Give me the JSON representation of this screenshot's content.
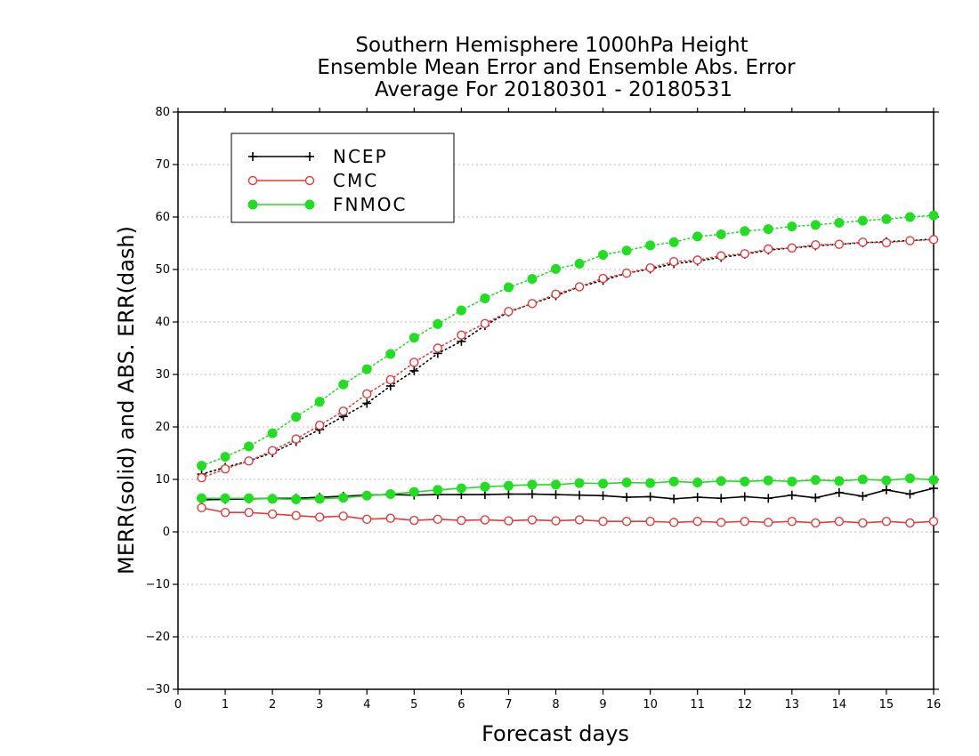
{
  "chart_data": {
    "type": "line",
    "title": [
      "Southern Hemisphere 1000hPa Height",
      "Ensemble Mean Error and Ensemble Abs. Error",
      "Average For 20180301 - 20180531"
    ],
    "xlabel": "Forecast days",
    "ylabel": "MERR(solid) and ABS. ERR(dash)",
    "xlim": [
      0,
      16
    ],
    "ylim": [
      -30,
      80
    ],
    "xticks": [
      "0",
      "1",
      "2",
      "3",
      "4",
      "5",
      "6",
      "7",
      "8",
      "9",
      "10",
      "11",
      "12",
      "13",
      "14",
      "15",
      "16"
    ],
    "yticks": [
      "−30",
      "−20",
      "−10",
      "0",
      "10",
      "20",
      "30",
      "40",
      "50",
      "60",
      "70",
      "80"
    ],
    "grid": "horizontal dotted",
    "legend_position": "top-left",
    "x": [
      0.5,
      1,
      1.5,
      2,
      2.5,
      3,
      3.5,
      4,
      4.5,
      5,
      5.5,
      6,
      6.5,
      7,
      7.5,
      8,
      8.5,
      9,
      9.5,
      10,
      10.5,
      11,
      11.5,
      12,
      12.5,
      13,
      13.5,
      14,
      14.5,
      15,
      15.5,
      16
    ],
    "series": [
      {
        "name": "NCEP",
        "color": "#000000",
        "marker": "plus",
        "mean_error": [
          6.1,
          6.2,
          6.3,
          6.4,
          6.4,
          6.6,
          6.8,
          7.0,
          7.1,
          7.0,
          7.1,
          7.1,
          7.1,
          7.2,
          7.2,
          7.1,
          7.0,
          6.9,
          6.6,
          6.7,
          6.3,
          6.6,
          6.4,
          6.7,
          6.4,
          7.0,
          6.5,
          7.5,
          6.8,
          8.0,
          7.2,
          8.3
        ],
        "abs_error": [
          11.0,
          12.3,
          13.5,
          15.1,
          17.2,
          19.5,
          22.0,
          24.5,
          27.8,
          30.7,
          34.0,
          36.3,
          39.3,
          41.9,
          43.5,
          45.0,
          46.7,
          47.9,
          49.3,
          50.1,
          51.1,
          51.6,
          52.3,
          52.9,
          53.7,
          54.1,
          54.5,
          54.8,
          55.1,
          55.3,
          55.5,
          55.8
        ]
      },
      {
        "name": "CMC",
        "color": "#e23c3c",
        "marker": "open-circle",
        "mean_error": [
          4.6,
          3.7,
          3.7,
          3.4,
          3.1,
          2.8,
          3.0,
          2.4,
          2.6,
          2.2,
          2.4,
          2.2,
          2.3,
          2.1,
          2.3,
          2.1,
          2.3,
          2.0,
          2.0,
          2.0,
          1.8,
          2.0,
          1.8,
          2.0,
          1.8,
          2.0,
          1.7,
          2.0,
          1.7,
          2.0,
          1.7,
          2.0
        ],
        "abs_error": [
          10.3,
          12.0,
          13.5,
          15.5,
          17.7,
          20.3,
          23.0,
          26.3,
          29.0,
          32.3,
          35.0,
          37.5,
          39.7,
          42.0,
          43.5,
          45.3,
          46.7,
          48.3,
          49.3,
          50.3,
          51.5,
          51.8,
          52.6,
          53.0,
          53.9,
          54.1,
          54.7,
          54.8,
          55.2,
          55.1,
          55.5,
          55.7
        ]
      },
      {
        "name": "FNMOC",
        "color": "#22dd22",
        "marker": "filled-circle",
        "mean_error": [
          6.4,
          6.4,
          6.4,
          6.3,
          6.2,
          6.3,
          6.5,
          6.9,
          7.2,
          7.6,
          8.0,
          8.3,
          8.6,
          8.8,
          9.0,
          9.0,
          9.3,
          9.2,
          9.4,
          9.3,
          9.6,
          9.4,
          9.7,
          9.6,
          9.8,
          9.6,
          9.9,
          9.7,
          10.0,
          9.8,
          10.2,
          9.9
        ],
        "abs_error": [
          12.6,
          14.3,
          16.3,
          18.8,
          21.9,
          24.8,
          28.1,
          31.0,
          33.9,
          37.0,
          39.6,
          42.2,
          44.5,
          46.6,
          48.2,
          50.1,
          51.1,
          52.8,
          53.6,
          54.6,
          55.2,
          56.3,
          56.7,
          57.3,
          57.7,
          58.2,
          58.5,
          58.9,
          59.3,
          59.6,
          60.0,
          60.3
        ]
      }
    ]
  }
}
